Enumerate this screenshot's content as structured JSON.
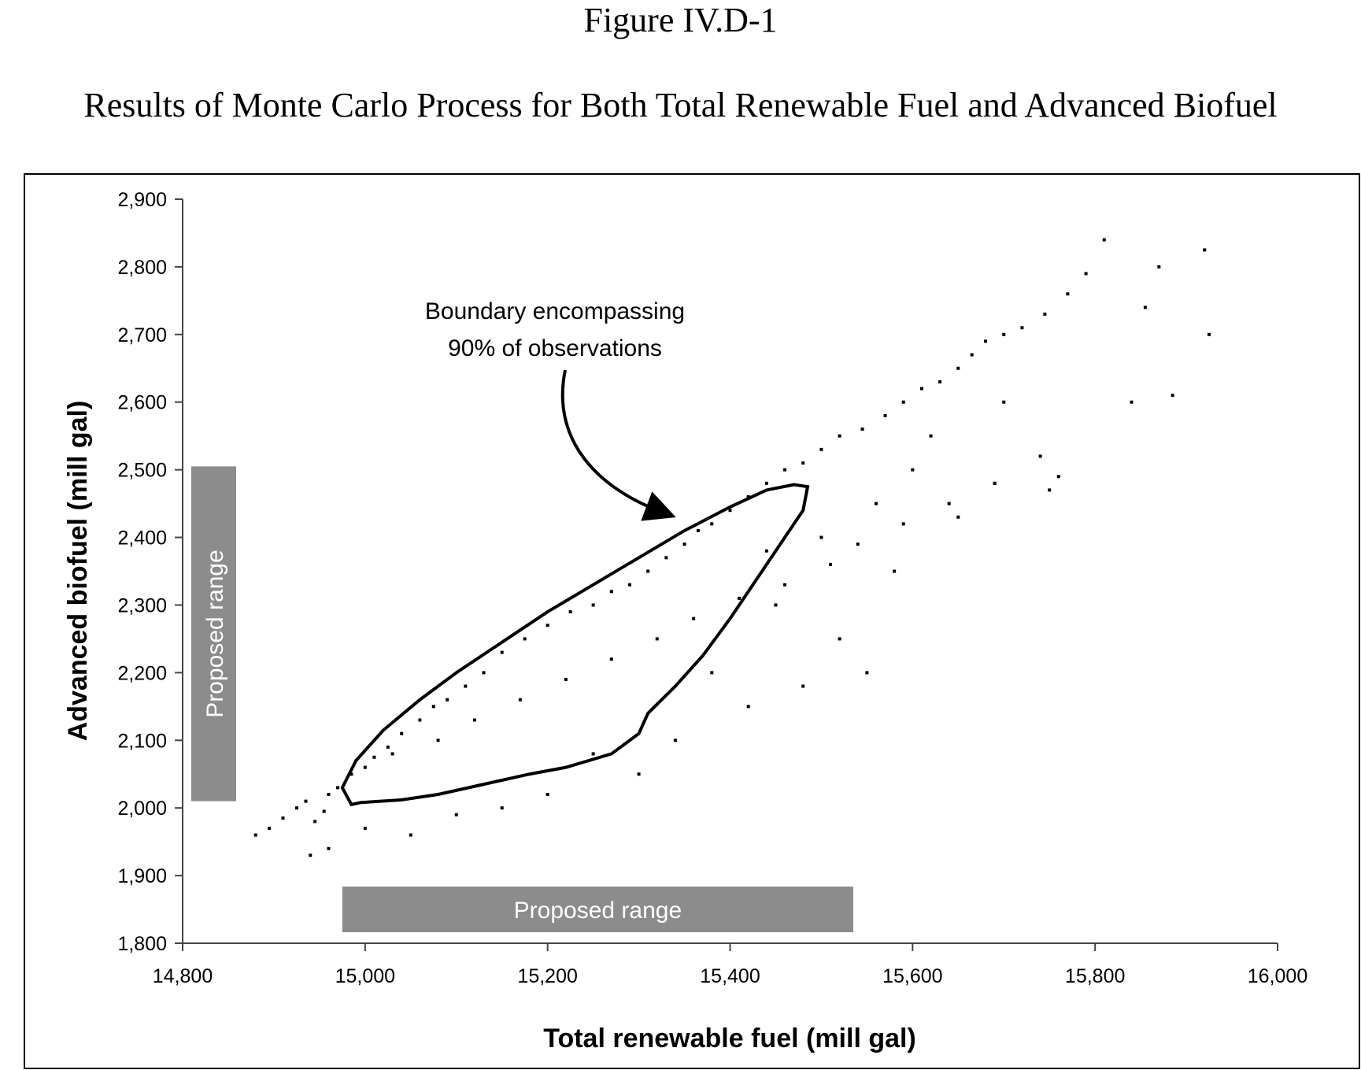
{
  "figure": {
    "label": "Figure IV.D-1",
    "caption": "Results of Monte Carlo Process for Both Total Renewable Fuel and Advanced Biofuel"
  },
  "chart_data": {
    "type": "scatter",
    "xlabel": "Total renewable fuel (mill gal)",
    "ylabel": "Advanced biofuel (mill gal)",
    "xlim": [
      14800,
      16000
    ],
    "ylim": [
      1800,
      2900
    ],
    "x_ticks": [
      14800,
      15000,
      15200,
      15400,
      15600,
      15800,
      16000
    ],
    "y_ticks": [
      1800,
      1900,
      2000,
      2100,
      2200,
      2300,
      2400,
      2500,
      2600,
      2700,
      2800,
      2900
    ],
    "x_tick_labels": [
      "14,800",
      "15,000",
      "15,200",
      "15,400",
      "15,600",
      "15,800",
      "16,000"
    ],
    "y_tick_labels": [
      "1,800",
      "1,900",
      "2,000",
      "2,100",
      "2,200",
      "2,300",
      "2,400",
      "2,500",
      "2,600",
      "2,700",
      "2,800",
      "2,900"
    ],
    "grid": false,
    "legend": "none",
    "point_color": "#000000",
    "observations": {
      "x": [
        14880,
        14895,
        14910,
        14925,
        14935,
        14945,
        14955,
        14960,
        14970,
        14985,
        15000,
        15010,
        15025,
        15040,
        15060,
        15075,
        15090,
        15110,
        15130,
        15150,
        15175,
        15200,
        15225,
        15250,
        15270,
        15290,
        15310,
        15330,
        15350,
        15365,
        15380,
        15400,
        15420,
        15440,
        15460,
        15480,
        15500,
        15520,
        15545,
        15570,
        15590,
        15610,
        15630,
        15650,
        15665,
        15680,
        15700,
        15720,
        15745,
        15770,
        15790,
        15810,
        15840,
        15855,
        15870,
        15885,
        15920,
        15925,
        15440,
        15500,
        15450,
        15520,
        15560,
        15600,
        15580,
        15620,
        15650,
        15690,
        15700,
        15750,
        15760,
        15550,
        15480,
        15420,
        15380,
        15340,
        15300,
        15250,
        15200,
        15150,
        15100,
        15050,
        15000,
        14960,
        14940,
        15030,
        15080,
        15120,
        15170,
        15220,
        15270,
        15320,
        15360,
        15410,
        15460,
        15510,
        15540,
        15590,
        15640,
        15690,
        15740
      ],
      "y": [
        1960,
        1970,
        1985,
        2000,
        2010,
        1980,
        1995,
        2020,
        2030,
        2050,
        2060,
        2075,
        2090,
        2110,
        2130,
        2150,
        2160,
        2180,
        2200,
        2230,
        2250,
        2270,
        2290,
        2300,
        2320,
        2330,
        2350,
        2370,
        2390,
        2410,
        2420,
        2440,
        2460,
        2480,
        2500,
        2510,
        2530,
        2550,
        2560,
        2580,
        2600,
        2620,
        2630,
        2650,
        2670,
        2690,
        2700,
        2710,
        2730,
        2760,
        2790,
        2840,
        2600,
        2740,
        2800,
        2610,
        2825,
        2700,
        2380,
        2400,
        2300,
        2250,
        2450,
        2500,
        2350,
        2550,
        2430,
        2480,
        2600,
        2470,
        2490,
        2200,
        2180,
        2150,
        2200,
        2100,
        2050,
        2080,
        2020,
        2000,
        1990,
        1960,
        1970,
        1940,
        1930,
        2080,
        2100,
        2130,
        2160,
        2190,
        2220,
        2250,
        2280,
        2310,
        2330,
        2360,
        2390,
        2420,
        2450,
        2480,
        2520
      ]
    },
    "annotations": [
      {
        "text_lines": [
          "Boundary encompassing",
          "90% of observations"
        ]
      },
      {
        "text": "Proposed range",
        "axis": "x",
        "range": [
          14975,
          15535
        ]
      },
      {
        "text": "Proposed range",
        "axis": "y",
        "range": [
          2010,
          2505
        ]
      }
    ],
    "boundary": {
      "x": [
        14985,
        14975,
        14990,
        15020,
        15060,
        15100,
        15150,
        15200,
        15250,
        15300,
        15350,
        15400,
        15440,
        15470,
        15485,
        15480,
        15460,
        15430,
        15400,
        15370,
        15340,
        15310,
        15300,
        15270,
        15220,
        15180,
        15130,
        15080,
        15040,
        14995,
        14985
      ],
      "y": [
        2005,
        2030,
        2070,
        2115,
        2160,
        2200,
        2245,
        2290,
        2330,
        2370,
        2410,
        2445,
        2470,
        2478,
        2475,
        2440,
        2400,
        2340,
        2280,
        2225,
        2180,
        2140,
        2110,
        2080,
        2060,
        2050,
        2035,
        2020,
        2012,
        2008,
        2005
      ]
    }
  }
}
